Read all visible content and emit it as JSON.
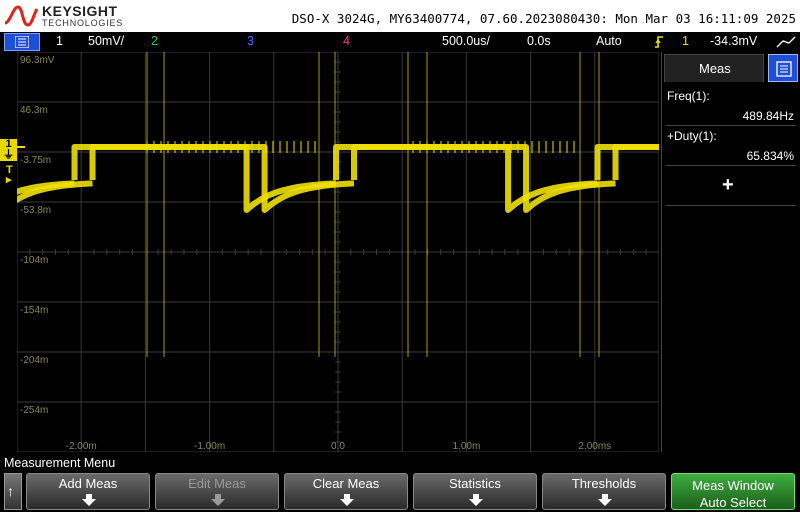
{
  "header": {
    "brand": "KEYSIGHT",
    "brand_sub": "TECHNOLOGIES",
    "instrument_info": "DSO-X 3024G, MY63400774, 07.60.2023080430: Mon Mar 03 16:11:09 2025"
  },
  "channel_bar": {
    "ch1_num": "1",
    "ch1_scale": "50mV/",
    "ch2_num": "2",
    "ch3_num": "3",
    "ch4_num": "4",
    "timebase": "500.0us/",
    "delay": "0.0s",
    "trigger_mode": "Auto",
    "trigger_source": "1",
    "trigger_level": "-34.3mV"
  },
  "y_ticks": [
    "96.3mV",
    "46.3m",
    "-3.75m",
    "-53.8m",
    "-104m",
    "-154m",
    "-204m",
    "-254m"
  ],
  "x_ticks": [
    "-2.00m",
    "-1.00m",
    "0.0",
    "1.00m",
    "2.00ms"
  ],
  "markers": {
    "ground": "1",
    "trigger": "T"
  },
  "meas_panel": {
    "tab_label": "Meas",
    "items": [
      {
        "label": "Freq(1):",
        "value": "489.84Hz"
      },
      {
        "label": "+Duty(1):",
        "value": "65.834%"
      }
    ],
    "add_symbol": "+"
  },
  "softkeys": {
    "menu_title": "Measurement Menu",
    "back": "↑",
    "add_meas": "Add Meas",
    "edit_meas": "Edit Meas",
    "clear_meas": "Clear Meas",
    "statistics": "Statistics",
    "thresholds": "Thresholds",
    "meas_window_line1": "Meas Window",
    "meas_window_line2": "Auto Select"
  },
  "colors": {
    "ch1": "#f0e000",
    "ch2": "#33cc33",
    "ch3": "#4a6cff",
    "ch4": "#ff3399",
    "trigger": "#ff8c00",
    "grid": "#3a3a3a",
    "accent_blue": "#1e4fd6",
    "softkey_green": "#2f8f2f"
  },
  "icons": {
    "logo": "keysight-wave-icon",
    "menu": "menu-icon",
    "trigger_edge": "rising-edge-icon",
    "probe": "probe-icon",
    "meas_select": "meas-select-icon",
    "softkey_arrow": "down-arrow-icon"
  }
}
